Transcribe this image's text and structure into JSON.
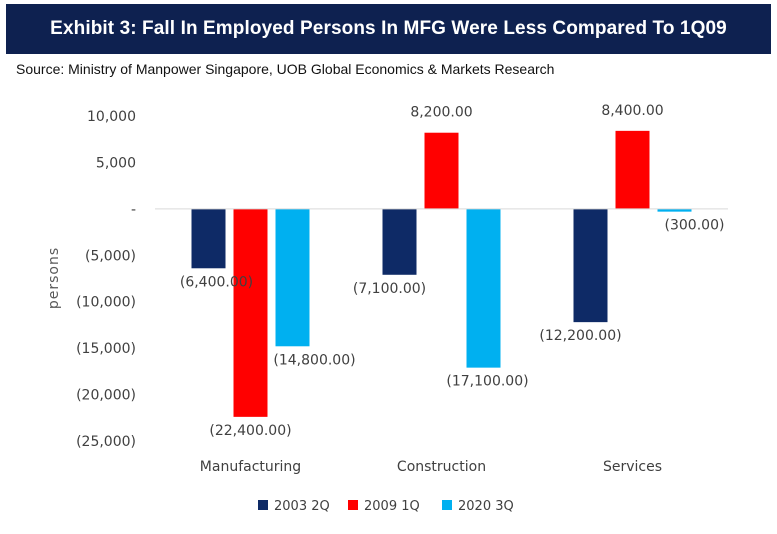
{
  "header": {
    "title": "Exhibit 3: Fall In Employed Persons In MFG Were Less Compared To 1Q09",
    "background": "#0e2150"
  },
  "source": "Source: Ministry of Manpower Singapore, UOB Global Economics & Markets Research",
  "chart_data": {
    "type": "bar",
    "categories": [
      "Manufacturing",
      "Construction",
      "Services"
    ],
    "series": [
      {
        "name": "2003 2Q",
        "color": "#0e2a66",
        "values": [
          -6400,
          -7100,
          -12200
        ],
        "labels": [
          "(6,400.00)",
          "(7,100.00)",
          "(12,200.00)"
        ]
      },
      {
        "name": "2009 1Q",
        "color": "#ff0000",
        "values": [
          -22400,
          8200,
          8400
        ],
        "labels": [
          "(22,400.00)",
          "8,200.00",
          "8,400.00"
        ]
      },
      {
        "name": "2020 3Q",
        "color": "#00b0f0",
        "values": [
          -14800,
          -17100,
          -300
        ],
        "labels": [
          "(14,800.00)",
          "(17,100.00)",
          "(300.00)"
        ]
      }
    ],
    "ylabel": "persons",
    "ylim": [
      -25000,
      10000
    ],
    "yticks": [
      10000,
      5000,
      0,
      -5000,
      -10000,
      -15000,
      -20000,
      -25000
    ],
    "ytick_labels": [
      "10,000",
      "5,000",
      "-",
      "(5,000)",
      "(10,000)",
      "(15,000)",
      "(20,000)",
      "(25,000)"
    ],
    "grid": false,
    "legend": "bottom"
  }
}
